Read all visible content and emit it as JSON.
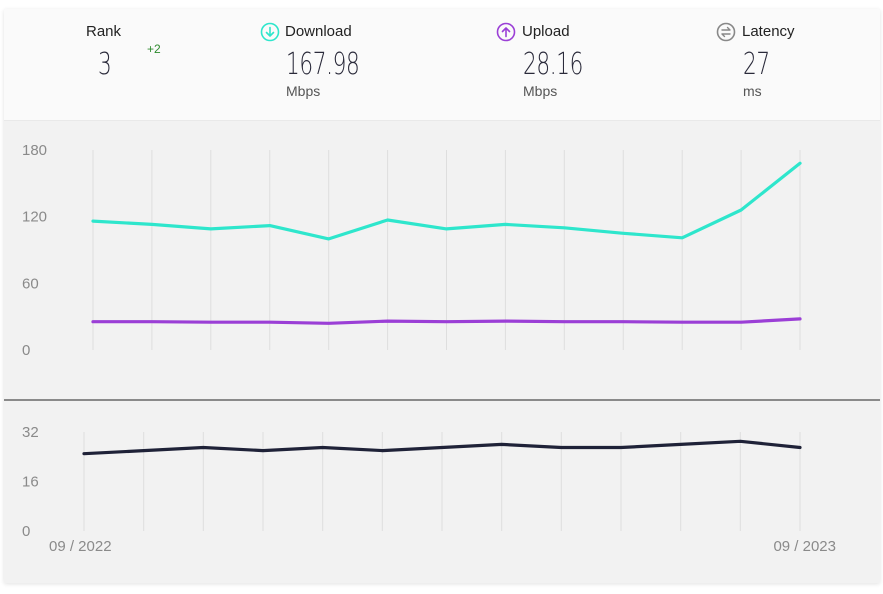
{
  "stats": {
    "rank": {
      "label": "Rank",
      "value": "3",
      "change": "+2"
    },
    "download": {
      "label": "Download",
      "value": "167.98",
      "unit": "Mbps",
      "icon": "download-arrow-icon",
      "color": "#2ee6cc"
    },
    "upload": {
      "label": "Upload",
      "value": "28.16",
      "unit": "Mbps",
      "icon": "upload-arrow-icon",
      "color": "#9b3fd6"
    },
    "latency": {
      "label": "Latency",
      "value": "27",
      "unit": "ms",
      "icon": "latency-swap-icon",
      "color": "#888888"
    }
  },
  "chart_data": [
    {
      "type": "line",
      "grid": "vertical",
      "ylim": [
        0,
        180
      ],
      "yticks": [
        0,
        60,
        120,
        180
      ],
      "series": [
        {
          "name": "Download",
          "color": "#2ee6cc",
          "values": [
            116,
            113,
            109,
            112,
            100,
            117,
            109,
            113,
            110,
            105,
            101,
            126,
            168
          ]
        },
        {
          "name": "Upload",
          "color": "#9b3fd6",
          "values": [
            25.5,
            25.5,
            25,
            25,
            24,
            26,
            25.5,
            26,
            25.5,
            25.5,
            25,
            25,
            28
          ]
        }
      ]
    },
    {
      "type": "line",
      "grid": "vertical",
      "ylim": [
        0,
        32
      ],
      "yticks": [
        0,
        16,
        32
      ],
      "x_start_label": "09 / 2022",
      "x_end_label": "09 / 2023",
      "series": [
        {
          "name": "Latency",
          "color": "#1f2238",
          "values": [
            25,
            26,
            27,
            26,
            27,
            26,
            27,
            28,
            27,
            27,
            28,
            29,
            27
          ]
        }
      ]
    }
  ]
}
